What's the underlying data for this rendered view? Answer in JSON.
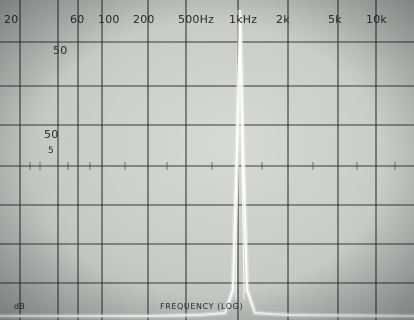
{
  "scope": {
    "freq_labels": [
      "20",
      "50",
      "60",
      "100",
      "200",
      "500Hz",
      "1kHz",
      "2k",
      "5k",
      "10k"
    ],
    "amp_labels": [
      "50",
      "5"
    ],
    "axis_caption": "FREQUENCY (LOG)",
    "corner_mark": "dB"
  },
  "colors": {
    "graticule": "#2e2e2e",
    "trace": "#ffffff",
    "screen": "#cfd1cf"
  }
}
